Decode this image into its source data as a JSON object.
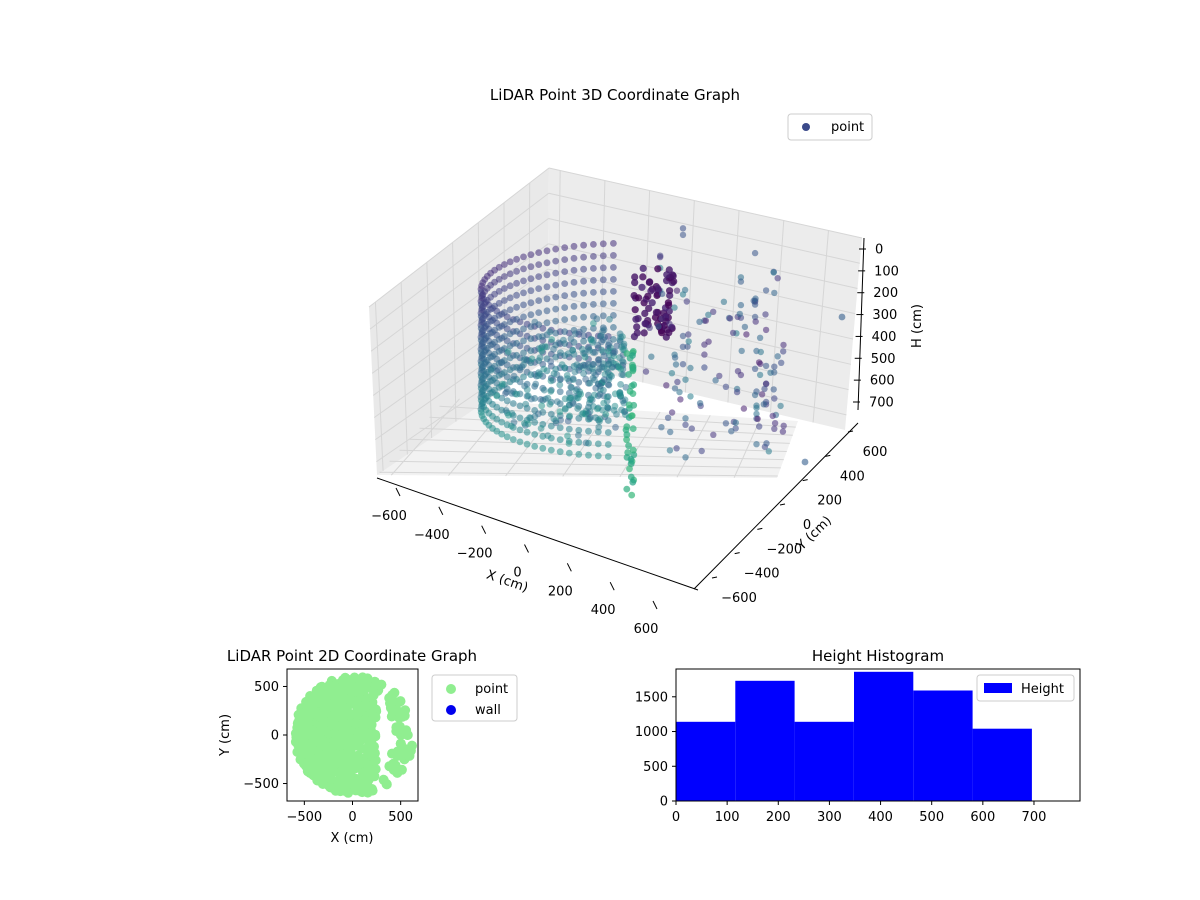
{
  "chart_data": [
    {
      "type": "scatter",
      "title": "LiDAR Point 3D Coordinate Graph",
      "xlabel": "X (cm)",
      "ylabel": "Y (cm)",
      "zlabel": "H (cm)",
      "xlim": [
        -650,
        650
      ],
      "ylim": [
        -650,
        650
      ],
      "zlim": [
        760,
        0
      ],
      "x_ticks": [
        "−600",
        "−400",
        "−200",
        "0",
        "200",
        "400",
        "600"
      ],
      "y_ticks": [
        "−600",
        "−400",
        "−200",
        "0",
        "200",
        "400",
        "600"
      ],
      "z_ticks": [
        "0",
        "100",
        "200",
        "300",
        "400",
        "500",
        "600",
        "700"
      ],
      "legend": [
        {
          "name": "point",
          "color": "#3b4a8a"
        }
      ],
      "legend_position": "top-right",
      "colormap": "viridis",
      "grid": true,
      "series": [
        {
          "name": "point",
          "shape": "cylinder",
          "radius": 600,
          "height_range": [
            0,
            700
          ]
        }
      ]
    },
    {
      "type": "scatter",
      "title": "LiDAR Point 2D Coordinate Graph",
      "xlabel": "X (cm)",
      "ylabel": "Y (cm)",
      "xlim": [
        -680,
        680
      ],
      "ylim": [
        -680,
        680
      ],
      "x_ticks": [
        "−500",
        "0",
        "500"
      ],
      "y_ticks": [
        "500",
        "0",
        "−500"
      ],
      "legend": [
        {
          "name": "point",
          "color": "#90ee90"
        },
        {
          "name": "wall",
          "color": "#0000ee"
        }
      ],
      "legend_position": "outside-right",
      "series": [
        {
          "name": "point",
          "shape": "disk",
          "radius": 600
        }
      ]
    },
    {
      "type": "bar",
      "title": "Height Histogram",
      "xlim": [
        0,
        790
      ],
      "ylim": [
        0,
        1900
      ],
      "x_ticks": [
        "0",
        "100",
        "200",
        "300",
        "400",
        "500",
        "600",
        "700"
      ],
      "y_ticks": [
        "0",
        "500",
        "1000",
        "1500"
      ],
      "bin_edges": [
        0,
        116,
        232,
        348,
        464,
        580,
        696
      ],
      "values": [
        1140,
        1730,
        1140,
        1860,
        1590,
        1040
      ],
      "legend": [
        {
          "name": "Height",
          "color": "#0000ff"
        }
      ],
      "legend_position": "top-right",
      "color": "#0000ff"
    }
  ]
}
